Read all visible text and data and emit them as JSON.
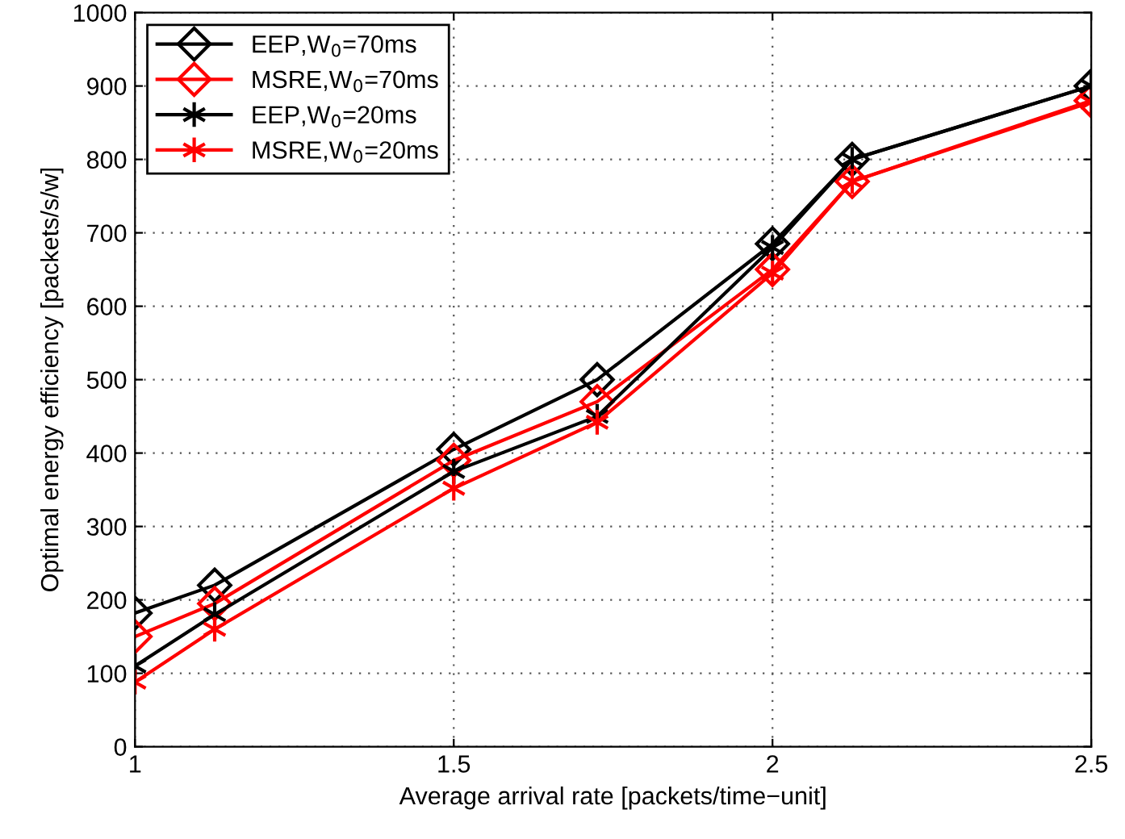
{
  "chart_data": {
    "type": "line",
    "xlabel": "Average arrival rate [packets/time−unit]",
    "ylabel": "Optimal energy efficiency [packets/s/w]",
    "x": [
      1,
      1.125,
      1.5,
      1.725,
      2,
      2.125,
      2.5
    ],
    "series": [
      {
        "name": "EEP,W$_{0}$=70ms",
        "color": "#000000",
        "marker": "diamond",
        "values": [
          182,
          220,
          405,
          500,
          685,
          800,
          900
        ]
      },
      {
        "name": "MSRE,W$_{0}$=70ms",
        "color": "#ff0000",
        "marker": "diamond",
        "values": [
          150,
          195,
          390,
          470,
          650,
          770,
          880
        ]
      },
      {
        "name": "EEP,W$_{0}$=20ms",
        "color": "#000000",
        "marker": "cross",
        "values": [
          110,
          180,
          375,
          450,
          680,
          800,
          900
        ]
      },
      {
        "name": "MSRE,W$_{0}$=20ms",
        "color": "#ff0000",
        "marker": "cross",
        "values": [
          88,
          160,
          352,
          442,
          645,
          770,
          878
        ]
      }
    ],
    "xlim": [
      1,
      2.5
    ],
    "xticks": [
      1,
      1.5,
      2,
      2.5
    ],
    "ylim": [
      0,
      1000
    ],
    "yticks": [
      0,
      100,
      200,
      300,
      400,
      500,
      600,
      700,
      800,
      900,
      1000
    ],
    "grid": true,
    "legend": "top left",
    "line_style": "solid"
  }
}
